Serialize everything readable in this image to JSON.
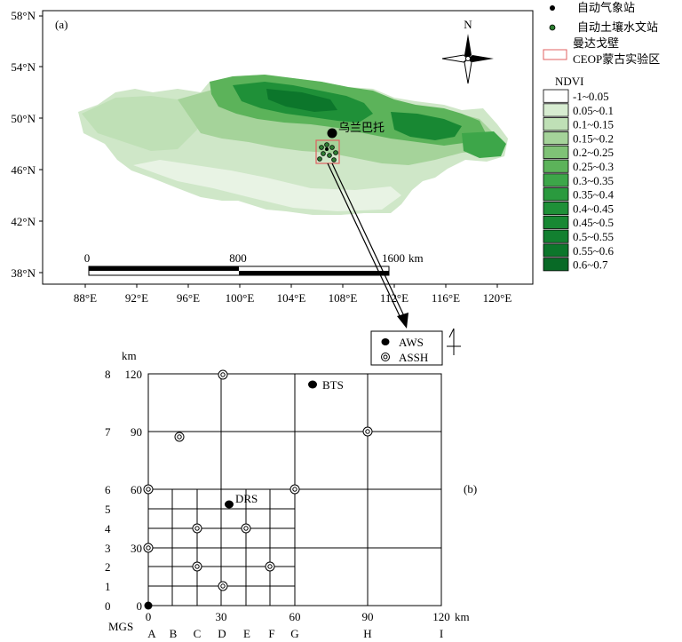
{
  "panel_a": {
    "label": "(a)",
    "lat_ticks": [
      "58°N",
      "54°N",
      "50°N",
      "46°N",
      "42°N",
      "38°N"
    ],
    "lon_ticks": [
      "88°E",
      "92°E",
      "96°E",
      "100°E",
      "104°E",
      "108°E",
      "112°E",
      "116°E",
      "120°E"
    ],
    "north_arrow": "N",
    "city_label": "乌兰巴托",
    "scale_bar": {
      "labels": [
        "0",
        "800",
        "1600"
      ],
      "unit": "km"
    }
  },
  "legend": {
    "aws": "自动气象站",
    "soil": "自动土壤水文站",
    "region_line1": "曼达戈壁",
    "region_line2": "CEOP蒙古实验区",
    "ndvi_title": "NDVI",
    "ndvi_classes": [
      {
        "label": "-1~0.05",
        "color": "#ffffff"
      },
      {
        "label": "0.05~0.1",
        "color": "#d7ecd1"
      },
      {
        "label": "0.1~0.15",
        "color": "#bfe0b6"
      },
      {
        "label": "0.15~0.2",
        "color": "#a5d39a"
      },
      {
        "label": "0.2~0.25",
        "color": "#7fc276"
      },
      {
        "label": "0.25~0.3",
        "color": "#5cb35a"
      },
      {
        "label": "0.3~0.35",
        "color": "#3da649"
      },
      {
        "label": "0.35~0.4",
        "color": "#2a9a3e"
      },
      {
        "label": "0.4~0.45",
        "color": "#1f9038"
      },
      {
        "label": "0.45~0.5",
        "color": "#188833"
      },
      {
        "label": "0.5~0.55",
        "color": "#128030"
      },
      {
        "label": "0.55~0.6",
        "color": "#0c762b"
      },
      {
        "label": "0.6~0.7",
        "color": "#086a26"
      }
    ]
  },
  "panel_b": {
    "label": "(b)",
    "legend_aws": "AWS",
    "legend_assh": "ASSH",
    "y_unit": "km",
    "x_unit": "km",
    "y_grid_labels": [
      "8",
      "7",
      "6",
      "5",
      "4",
      "3",
      "2",
      "1",
      "0"
    ],
    "y_km_labels": [
      "120",
      "90",
      "60",
      "30",
      "0"
    ],
    "x_km_labels": [
      "0",
      "30",
      "60",
      "90",
      "120"
    ],
    "x_letters": [
      "A",
      "B",
      "C",
      "D",
      "E",
      "F",
      "G",
      "H",
      "I"
    ],
    "origin_label": "MGS",
    "stations": {
      "bts": "BTS",
      "drs": "DRS"
    }
  }
}
